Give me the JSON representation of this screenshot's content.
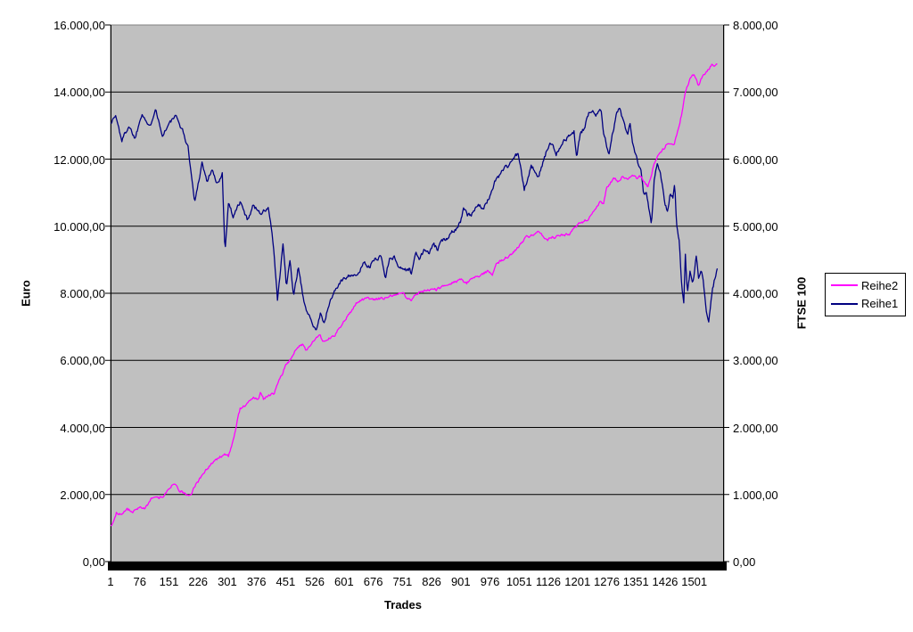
{
  "chart": {
    "background": "#FFFFFF",
    "plot": {
      "fill": "#C0C0C0",
      "border_color": "#808080",
      "gridline_color": "#000000",
      "axis_color": "#000000",
      "baseline_color": "#000000"
    },
    "left_axis": {
      "title": "Euro",
      "labels": [
        "16.000,00",
        "14.000,00",
        "12.000,00",
        "10.000,00",
        "8.000,00",
        "6.000,00",
        "4.000,00",
        "2.000,00",
        "0,00"
      ]
    },
    "right_axis": {
      "title": "FTSE 100",
      "labels": [
        "8.000,00",
        "7.000,00",
        "6.000,00",
        "5.000,00",
        "4.000,00",
        "3.000,00",
        "2.000,00",
        "1.000,00",
        "0,00"
      ]
    },
    "x_axis": {
      "title": "Trades",
      "labels": [
        "1",
        "76",
        "151",
        "226",
        "301",
        "376",
        "451",
        "526",
        "601",
        "676",
        "751",
        "826",
        "901",
        "976",
        "1051",
        "1126",
        "1201",
        "1276",
        "1351",
        "1426",
        "1501"
      ]
    },
    "legend": {
      "items": [
        {
          "label": "Reihe2",
          "color": "#FF00FF"
        },
        {
          "label": "Reihe1",
          "color": "#000080"
        }
      ]
    }
  },
  "chart_data": {
    "type": "line",
    "title": "",
    "xlabel": "Trades",
    "grid": true,
    "legend_position": "right",
    "x_range": [
      1,
      1575
    ],
    "x_tick_values": [
      1,
      76,
      151,
      226,
      301,
      376,
      451,
      526,
      601,
      676,
      751,
      826,
      901,
      976,
      1051,
      1126,
      1201,
      1276,
      1351,
      1426,
      1501
    ],
    "left_axis": {
      "label": "Euro",
      "min": 0,
      "max": 16000,
      "tick_step": 2000
    },
    "right_axis": {
      "label": "FTSE 100",
      "min": 0,
      "max": 8000,
      "tick_step": 1000
    },
    "noise": {
      "seed": 1337,
      "step": 2,
      "smoothing": 0.5,
      "amplitude": {
        "Reihe1": 55,
        "Reihe2": 70
      }
    },
    "series": [
      {
        "name": "Reihe1",
        "axis": "right",
        "color": "#000080",
        "keypoints": [
          [
            2,
            6550
          ],
          [
            14,
            6650
          ],
          [
            30,
            6280
          ],
          [
            48,
            6500
          ],
          [
            64,
            6310
          ],
          [
            82,
            6700
          ],
          [
            101,
            6460
          ],
          [
            117,
            6780
          ],
          [
            133,
            6350
          ],
          [
            151,
            6520
          ],
          [
            167,
            6640
          ],
          [
            185,
            6450
          ],
          [
            201,
            6150
          ],
          [
            217,
            5350
          ],
          [
            236,
            5950
          ],
          [
            249,
            5660
          ],
          [
            261,
            5850
          ],
          [
            275,
            5610
          ],
          [
            288,
            5800
          ],
          [
            295,
            4620
          ],
          [
            304,
            5360
          ],
          [
            316,
            5150
          ],
          [
            334,
            5360
          ],
          [
            352,
            5100
          ],
          [
            368,
            5310
          ],
          [
            387,
            5200
          ],
          [
            407,
            5260
          ],
          [
            416,
            4900
          ],
          [
            423,
            4450
          ],
          [
            430,
            3870
          ],
          [
            437,
            4300
          ],
          [
            444,
            4740
          ],
          [
            453,
            4100
          ],
          [
            462,
            4490
          ],
          [
            471,
            3950
          ],
          [
            483,
            4380
          ],
          [
            494,
            4000
          ],
          [
            506,
            3700
          ],
          [
            517,
            3610
          ],
          [
            529,
            3450
          ],
          [
            540,
            3700
          ],
          [
            551,
            3550
          ],
          [
            563,
            3850
          ],
          [
            579,
            4060
          ],
          [
            597,
            4200
          ],
          [
            609,
            4260
          ],
          [
            620,
            4290
          ],
          [
            632,
            4230
          ],
          [
            643,
            4360
          ],
          [
            654,
            4480
          ],
          [
            666,
            4380
          ],
          [
            677,
            4490
          ],
          [
            696,
            4560
          ],
          [
            707,
            4230
          ],
          [
            719,
            4550
          ],
          [
            730,
            4530
          ],
          [
            741,
            4410
          ],
          [
            757,
            4350
          ],
          [
            769,
            4360
          ],
          [
            773,
            4280
          ],
          [
            785,
            4590
          ],
          [
            796,
            4520
          ],
          [
            808,
            4650
          ],
          [
            819,
            4590
          ],
          [
            831,
            4720
          ],
          [
            842,
            4650
          ],
          [
            853,
            4780
          ],
          [
            865,
            4820
          ],
          [
            876,
            4920
          ],
          [
            888,
            4960
          ],
          [
            901,
            5080
          ],
          [
            908,
            5280
          ],
          [
            918,
            5150
          ],
          [
            929,
            5170
          ],
          [
            945,
            5350
          ],
          [
            959,
            5230
          ],
          [
            975,
            5450
          ],
          [
            991,
            5700
          ],
          [
            998,
            5740
          ],
          [
            1009,
            5850
          ],
          [
            1021,
            5890
          ],
          [
            1032,
            5980
          ],
          [
            1048,
            6090
          ],
          [
            1055,
            5850
          ],
          [
            1064,
            5540
          ],
          [
            1073,
            5710
          ],
          [
            1082,
            5890
          ],
          [
            1089,
            5850
          ],
          [
            1098,
            5700
          ],
          [
            1112,
            5940
          ],
          [
            1123,
            6150
          ],
          [
            1135,
            6250
          ],
          [
            1146,
            6090
          ],
          [
            1158,
            6210
          ],
          [
            1169,
            6290
          ],
          [
            1181,
            6350
          ],
          [
            1192,
            6410
          ],
          [
            1199,
            6010
          ],
          [
            1208,
            6380
          ],
          [
            1220,
            6470
          ],
          [
            1231,
            6710
          ],
          [
            1240,
            6750
          ],
          [
            1247,
            6650
          ],
          [
            1261,
            6750
          ],
          [
            1268,
            6420
          ],
          [
            1275,
            6250
          ],
          [
            1281,
            6050
          ],
          [
            1291,
            6380
          ],
          [
            1300,
            6650
          ],
          [
            1309,
            6750
          ],
          [
            1316,
            6610
          ],
          [
            1323,
            6470
          ],
          [
            1330,
            6340
          ],
          [
            1336,
            6510
          ],
          [
            1343,
            6210
          ],
          [
            1350,
            6070
          ],
          [
            1357,
            5910
          ],
          [
            1364,
            5830
          ],
          [
            1371,
            5450
          ],
          [
            1377,
            5540
          ],
          [
            1384,
            5300
          ],
          [
            1391,
            5000
          ],
          [
            1398,
            5710
          ],
          [
            1405,
            5940
          ],
          [
            1412,
            5850
          ],
          [
            1419,
            5620
          ],
          [
            1426,
            5320
          ],
          [
            1432,
            5220
          ],
          [
            1439,
            5480
          ],
          [
            1446,
            5430
          ],
          [
            1451,
            5630
          ],
          [
            1455,
            5030
          ],
          [
            1462,
            4760
          ],
          [
            1469,
            4100
          ],
          [
            1474,
            3830
          ],
          [
            1478,
            4570
          ],
          [
            1483,
            4000
          ],
          [
            1490,
            4310
          ],
          [
            1497,
            4090
          ],
          [
            1506,
            4560
          ],
          [
            1512,
            4230
          ],
          [
            1519,
            4360
          ],
          [
            1524,
            4170
          ],
          [
            1531,
            3740
          ],
          [
            1538,
            3580
          ],
          [
            1547,
            4040
          ],
          [
            1554,
            4230
          ],
          [
            1561,
            4420
          ]
        ]
      },
      {
        "name": "Reihe2",
        "axis": "left",
        "color": "#FF00FF",
        "keypoints": [
          [
            2,
            1060
          ],
          [
            16,
            1450
          ],
          [
            30,
            1410
          ],
          [
            43,
            1560
          ],
          [
            59,
            1490
          ],
          [
            76,
            1620
          ],
          [
            89,
            1570
          ],
          [
            105,
            1850
          ],
          [
            124,
            1900
          ],
          [
            140,
            1990
          ],
          [
            156,
            2250
          ],
          [
            165,
            2310
          ],
          [
            178,
            2120
          ],
          [
            190,
            2020
          ],
          [
            204,
            1950
          ],
          [
            220,
            2280
          ],
          [
            233,
            2510
          ],
          [
            249,
            2750
          ],
          [
            265,
            2950
          ],
          [
            281,
            3120
          ],
          [
            293,
            3210
          ],
          [
            304,
            3130
          ],
          [
            316,
            3600
          ],
          [
            325,
            4100
          ],
          [
            334,
            4570
          ],
          [
            346,
            4650
          ],
          [
            357,
            4780
          ],
          [
            368,
            4920
          ],
          [
            380,
            4840
          ],
          [
            387,
            5060
          ],
          [
            394,
            4840
          ],
          [
            407,
            4980
          ],
          [
            421,
            5010
          ],
          [
            432,
            5370
          ],
          [
            444,
            5640
          ],
          [
            453,
            5900
          ],
          [
            465,
            6040
          ],
          [
            474,
            6250
          ],
          [
            485,
            6420
          ],
          [
            494,
            6490
          ],
          [
            503,
            6300
          ],
          [
            515,
            6430
          ],
          [
            529,
            6680
          ],
          [
            540,
            6720
          ],
          [
            549,
            6560
          ],
          [
            563,
            6650
          ],
          [
            577,
            6720
          ],
          [
            590,
            7000
          ],
          [
            604,
            7230
          ],
          [
            618,
            7440
          ],
          [
            632,
            7720
          ],
          [
            645,
            7800
          ],
          [
            659,
            7860
          ],
          [
            673,
            7790
          ],
          [
            686,
            7830
          ],
          [
            700,
            7850
          ],
          [
            714,
            7910
          ],
          [
            728,
            7950
          ],
          [
            741,
            7970
          ],
          [
            753,
            7980
          ],
          [
            764,
            7850
          ],
          [
            773,
            7790
          ],
          [
            785,
            7960
          ],
          [
            796,
            8030
          ],
          [
            810,
            8080
          ],
          [
            824,
            8110
          ],
          [
            837,
            8100
          ],
          [
            851,
            8180
          ],
          [
            865,
            8220
          ],
          [
            879,
            8320
          ],
          [
            892,
            8370
          ],
          [
            906,
            8400
          ],
          [
            915,
            8290
          ],
          [
            927,
            8440
          ],
          [
            940,
            8490
          ],
          [
            954,
            8540
          ],
          [
            970,
            8660
          ],
          [
            982,
            8530
          ],
          [
            993,
            8900
          ],
          [
            1007,
            8990
          ],
          [
            1021,
            9100
          ],
          [
            1032,
            9160
          ],
          [
            1046,
            9330
          ],
          [
            1060,
            9550
          ],
          [
            1071,
            9680
          ],
          [
            1085,
            9730
          ],
          [
            1101,
            9830
          ],
          [
            1112,
            9730
          ],
          [
            1123,
            9600
          ],
          [
            1137,
            9670
          ],
          [
            1153,
            9700
          ],
          [
            1167,
            9730
          ],
          [
            1181,
            9760
          ],
          [
            1192,
            9940
          ],
          [
            1204,
            10070
          ],
          [
            1217,
            10140
          ],
          [
            1229,
            10230
          ],
          [
            1240,
            10390
          ],
          [
            1252,
            10570
          ],
          [
            1261,
            10770
          ],
          [
            1268,
            10630
          ],
          [
            1275,
            11100
          ],
          [
            1286,
            11300
          ],
          [
            1295,
            11430
          ],
          [
            1307,
            11330
          ],
          [
            1318,
            11510
          ],
          [
            1330,
            11380
          ],
          [
            1341,
            11510
          ],
          [
            1352,
            11430
          ],
          [
            1364,
            11480
          ],
          [
            1375,
            11300
          ],
          [
            1382,
            11180
          ],
          [
            1389,
            11430
          ],
          [
            1396,
            11770
          ],
          [
            1403,
            11960
          ],
          [
            1412,
            12190
          ],
          [
            1423,
            12310
          ],
          [
            1432,
            12500
          ],
          [
            1442,
            12480
          ],
          [
            1449,
            12420
          ],
          [
            1458,
            12850
          ],
          [
            1467,
            13250
          ],
          [
            1474,
            13700
          ],
          [
            1478,
            14020
          ],
          [
            1485,
            14230
          ],
          [
            1492,
            14420
          ],
          [
            1501,
            14550
          ],
          [
            1508,
            14300
          ],
          [
            1512,
            14170
          ],
          [
            1519,
            14400
          ],
          [
            1524,
            14510
          ],
          [
            1531,
            14600
          ],
          [
            1538,
            14690
          ],
          [
            1547,
            14840
          ],
          [
            1554,
            14760
          ],
          [
            1561,
            14810
          ]
        ]
      }
    ]
  }
}
